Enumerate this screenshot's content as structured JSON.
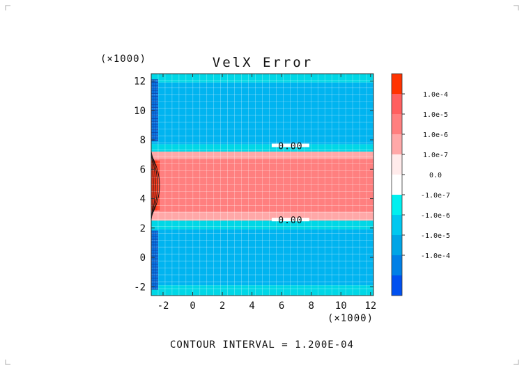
{
  "chart_data": {
    "type": "heatmap",
    "title": "VelX Error",
    "x_scale_label": "(×1000)",
    "y_scale_label": "(×1000)",
    "xlim": [
      -2.8,
      12.2
    ],
    "ylim": [
      -2.6,
      12.5
    ],
    "x_ticks": [
      "-2",
      "0",
      "2",
      "4",
      "6",
      "8",
      "10",
      "12"
    ],
    "y_ticks": [
      "-2",
      "0",
      "2",
      "4",
      "6",
      "8",
      "10",
      "12"
    ],
    "x_tick_values": [
      -2,
      0,
      2,
      4,
      6,
      8,
      10,
      12
    ],
    "y_tick_values": [
      -2,
      0,
      2,
      4,
      6,
      8,
      10,
      12
    ],
    "contour_interval_label": "CONTOUR INTERVAL = 1.200E-04",
    "bands": [
      {
        "name": "top-edge",
        "y0": 11.9,
        "y1": 12.5,
        "color": "#00d7e6"
      },
      {
        "name": "upper-field",
        "y0": 7.7,
        "y1": 11.9,
        "color": "#00b4f0"
      },
      {
        "name": "upper-transition",
        "y0": 7.2,
        "y1": 7.7,
        "color": "#00d7e6"
      },
      {
        "name": "upper-pink",
        "y0": 6.7,
        "y1": 7.2,
        "color": "#ffa8a8"
      },
      {
        "name": "core",
        "y0": 3.1,
        "y1": 6.7,
        "color": "#ff7f7f"
      },
      {
        "name": "lower-pink",
        "y0": 2.5,
        "y1": 3.1,
        "color": "#ffa8a8"
      },
      {
        "name": "lower-transition",
        "y0": 1.9,
        "y1": 2.5,
        "color": "#00d7e6"
      },
      {
        "name": "lower-field",
        "y0": -1.9,
        "y1": 1.9,
        "color": "#00b4f0"
      },
      {
        "name": "bottom-edge",
        "y0": -2.6,
        "y1": -1.9,
        "color": "#00d7e6"
      }
    ],
    "contour_labels": [
      {
        "text": "0.00",
        "x": 6.6,
        "y": 7.6
      },
      {
        "text": "0.00",
        "x": 6.6,
        "y": 2.55
      }
    ],
    "colorbar": {
      "colors": [
        "#ff3300",
        "#ff5f5f",
        "#ff7f7f",
        "#ffa8a8",
        "#ffebeb",
        "#ffffff",
        "#00f0f0",
        "#00c8f0",
        "#00a5e6",
        "#0080e6",
        "#0050f0"
      ],
      "labels": [
        "1.0e-4",
        "1.0e-5",
        "1.0e-6",
        "1.0e-7",
        "0.0",
        "-1.0e-7",
        "-1.0e-6",
        "-1.0e-5",
        "-1.0e-4"
      ]
    }
  }
}
